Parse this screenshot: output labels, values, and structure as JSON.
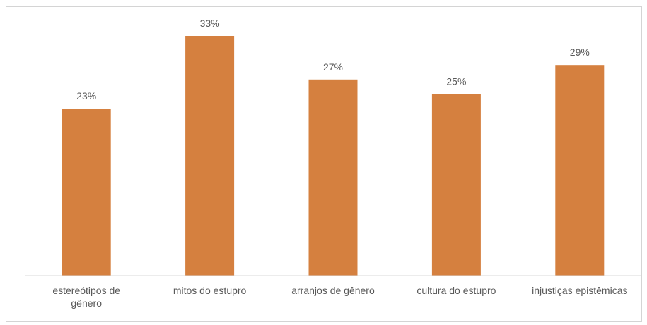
{
  "chart_data": {
    "type": "bar",
    "title": "",
    "categories": [
      "estereótipos de gênero",
      "mitos do estupro",
      "arranjos de gênero",
      "cultura do estupro",
      "injustiças epistêmicas"
    ],
    "category_lines": [
      [
        "estereótipos de",
        "gênero"
      ],
      [
        "mitos do estupro"
      ],
      [
        "arranjos de gênero"
      ],
      [
        "cultura do estupro"
      ],
      [
        "injustiças epistêmicas"
      ]
    ],
    "values": [
      23,
      33,
      27,
      25,
      29
    ],
    "data_labels": [
      "23%",
      "33%",
      "27%",
      "25%",
      "29%"
    ],
    "ylim": [
      0,
      35
    ],
    "bar_color": "#d5803f",
    "axis_color": "#d9d9d9",
    "grid": false,
    "legend": "none"
  }
}
